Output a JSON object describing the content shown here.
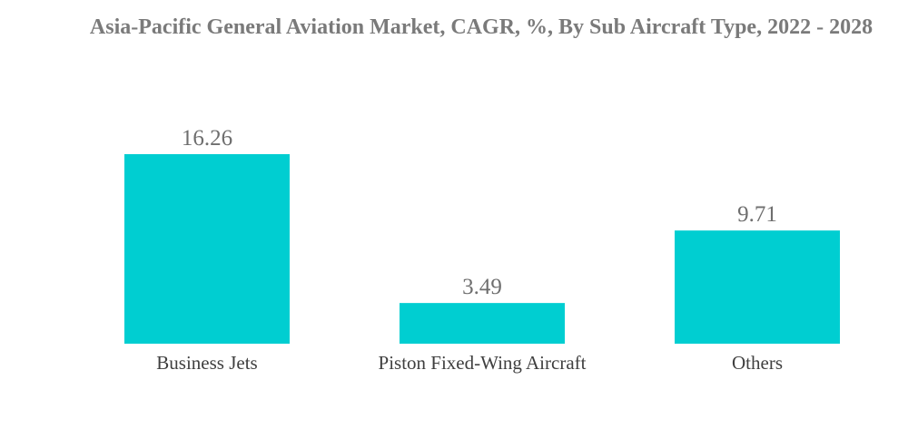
{
  "chart_data": {
    "type": "bar",
    "title": "Asia-Pacific General Aviation Market, CAGR, %, By Sub Aircraft Type, 2022 - 2028",
    "categories": [
      "Business Jets",
      "Piston Fixed-Wing Aircraft",
      "Others"
    ],
    "values": [
      16.26,
      3.49,
      9.71
    ],
    "data_labels": [
      "16.26",
      "3.49",
      "9.71"
    ],
    "xlabel": "",
    "ylabel": "",
    "ylim": [
      0,
      16.26
    ],
    "grid": false,
    "legend": "none",
    "bar_color": "#00CED1"
  }
}
